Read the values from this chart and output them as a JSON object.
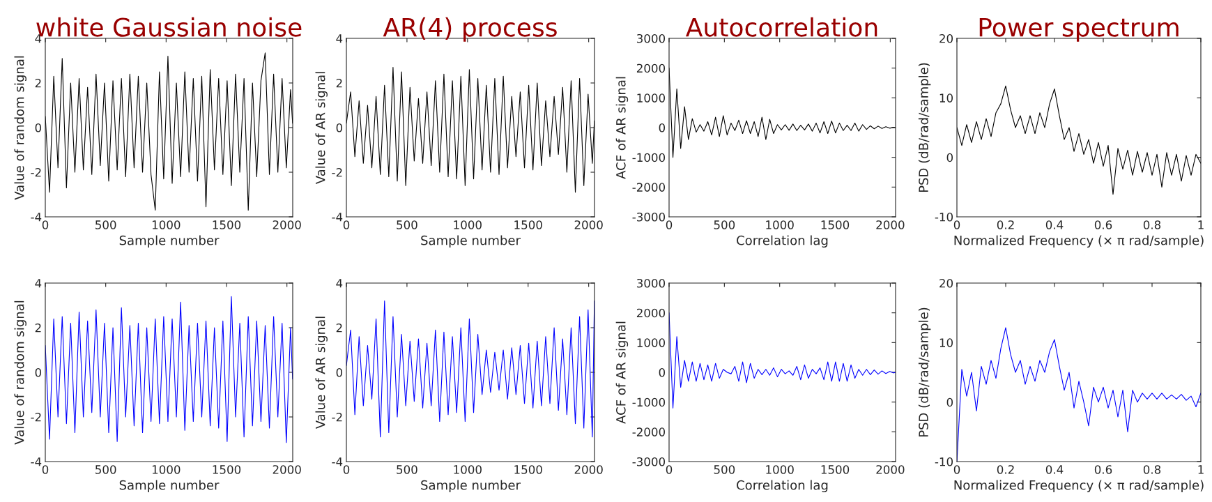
{
  "chart_data": [
    {
      "type": "line",
      "title": "white Gaussian noise",
      "xlabel": "Sample number",
      "ylabel": "Value of random signal",
      "xlim": [
        0,
        2048
      ],
      "xticks": [
        0,
        500,
        1000,
        1500,
        2000
      ],
      "ylim": [
        -4,
        4
      ],
      "yticks": [
        -4,
        -2,
        0,
        2,
        4
      ],
      "grid": false,
      "x": [
        0,
        35,
        70,
        105,
        140,
        175,
        210,
        245,
        280,
        315,
        350,
        385,
        420,
        455,
        490,
        525,
        560,
        595,
        630,
        665,
        700,
        735,
        770,
        805,
        840,
        875,
        910,
        945,
        980,
        1015,
        1050,
        1085,
        1120,
        1155,
        1190,
        1225,
        1260,
        1295,
        1330,
        1365,
        1400,
        1435,
        1470,
        1505,
        1540,
        1575,
        1610,
        1645,
        1680,
        1715,
        1750,
        1785,
        1820,
        1855,
        1890,
        1925,
        1960,
        1995,
        2030,
        2047
      ],
      "series": [
        {
          "color": "#000000",
          "values": [
            0.5,
            -2.9,
            2.3,
            -1.8,
            3.1,
            -2.7,
            2.0,
            -2.0,
            2.2,
            -1.9,
            1.8,
            -2.1,
            2.4,
            -1.7,
            2.0,
            -2.4,
            2.1,
            -1.9,
            2.2,
            -2.2,
            2.4,
            -1.8,
            2.3,
            -2.0,
            2.0,
            -2.1,
            -3.7,
            2.5,
            -2.3,
            3.2,
            -2.5,
            2.0,
            -2.2,
            2.5,
            -2.0,
            2.2,
            -2.4,
            2.3,
            -3.55,
            2.6,
            -1.9,
            2.2,
            -2.1,
            2.1,
            -2.6,
            2.4,
            -2.0,
            2.2,
            -3.7,
            2.0,
            -2.2,
            2.1,
            3.35,
            -2.1,
            2.4,
            -2.0,
            2.2,
            -1.8,
            1.7,
            0.2
          ]
        }
      ]
    },
    {
      "type": "line",
      "title": "AR(4) process",
      "xlabel": "Sample number",
      "ylabel": "Value of AR signal",
      "xlim": [
        0,
        2048
      ],
      "xticks": [
        0,
        500,
        1000,
        1500,
        2000
      ],
      "ylim": [
        -4,
        4
      ],
      "yticks": [
        -4,
        -2,
        0,
        2,
        4
      ],
      "grid": false,
      "x": [
        0,
        35,
        70,
        105,
        140,
        175,
        210,
        245,
        280,
        315,
        350,
        385,
        420,
        455,
        490,
        525,
        560,
        595,
        630,
        665,
        700,
        735,
        770,
        805,
        840,
        875,
        910,
        945,
        980,
        1015,
        1050,
        1085,
        1120,
        1155,
        1190,
        1225,
        1260,
        1295,
        1330,
        1365,
        1400,
        1435,
        1470,
        1505,
        1540,
        1575,
        1610,
        1645,
        1680,
        1715,
        1750,
        1785,
        1820,
        1855,
        1890,
        1925,
        1960,
        1995,
        2030,
        2047
      ],
      "series": [
        {
          "color": "#000000",
          "values": [
            0.2,
            1.6,
            -1.3,
            1.2,
            -1.6,
            1.0,
            -1.8,
            1.4,
            -2.1,
            1.9,
            -2.2,
            2.7,
            -2.4,
            2.5,
            -2.6,
            1.8,
            -1.5,
            1.3,
            -1.6,
            1.6,
            -1.7,
            2.1,
            -2.0,
            2.4,
            -2.2,
            2.1,
            -2.3,
            2.3,
            -2.6,
            2.6,
            -2.3,
            2.2,
            -1.9,
            1.9,
            -2.0,
            2.2,
            -2.1,
            2.3,
            -1.8,
            1.4,
            -1.3,
            1.6,
            -1.8,
            1.9,
            -1.9,
            2.0,
            -1.7,
            1.2,
            -1.3,
            1.4,
            -1.2,
            1.8,
            -2.0,
            2.1,
            -2.9,
            2.2,
            -2.6,
            1.5,
            -1.6,
            0.3
          ]
        }
      ]
    },
    {
      "type": "line",
      "title": "Autocorrelation",
      "xlabel": "Correlation lag",
      "ylabel": "ACF of AR signal",
      "xlim": [
        0,
        2048
      ],
      "xticks": [
        0,
        500,
        1000,
        1500,
        2000
      ],
      "ylim": [
        -3000,
        3000
      ],
      "yticks": [
        -3000,
        -2000,
        -1000,
        0,
        1000,
        2000,
        3000
      ],
      "grid": false,
      "x": [
        0,
        35,
        70,
        105,
        140,
        175,
        210,
        245,
        280,
        315,
        350,
        385,
        420,
        455,
        490,
        525,
        560,
        595,
        630,
        665,
        700,
        735,
        770,
        805,
        840,
        875,
        910,
        945,
        980,
        1015,
        1050,
        1085,
        1120,
        1155,
        1190,
        1225,
        1260,
        1295,
        1330,
        1365,
        1400,
        1435,
        1470,
        1505,
        1540,
        1575,
        1610,
        1645,
        1680,
        1715,
        1750,
        1785,
        1820,
        1855,
        1890,
        1925,
        1960,
        1995,
        2030,
        2047
      ],
      "series": [
        {
          "color": "#000000",
          "values": [
            2000,
            -1000,
            1300,
            -700,
            700,
            -400,
            300,
            -150,
            100,
            -120,
            200,
            -250,
            350,
            -300,
            400,
            -250,
            150,
            -100,
            250,
            -200,
            230,
            -200,
            200,
            -300,
            350,
            -400,
            280,
            -200,
            100,
            -80,
            100,
            -90,
            120,
            -100,
            80,
            -80,
            120,
            -120,
            150,
            -180,
            200,
            -200,
            220,
            -180,
            150,
            -100,
            80,
            -100,
            150,
            -120,
            100,
            -60,
            60,
            -40,
            50,
            -30,
            30,
            -20,
            10,
            0
          ]
        }
      ]
    },
    {
      "type": "line",
      "title": "Power spectrum",
      "xlabel": "Normalized Frequency (× π rad/sample)",
      "ylabel": "PSD (dB/rad/sample)",
      "xlim": [
        0,
        1
      ],
      "xticks": [
        0,
        0.2,
        0.4,
        0.6,
        0.8,
        1
      ],
      "ylim": [
        -10,
        20
      ],
      "yticks": [
        -10,
        0,
        10,
        20
      ],
      "grid": false,
      "x": [
        0,
        0.02,
        0.04,
        0.06,
        0.08,
        0.1,
        0.12,
        0.14,
        0.16,
        0.18,
        0.2,
        0.22,
        0.24,
        0.26,
        0.28,
        0.3,
        0.32,
        0.34,
        0.36,
        0.38,
        0.4,
        0.42,
        0.44,
        0.46,
        0.48,
        0.5,
        0.52,
        0.54,
        0.56,
        0.58,
        0.6,
        0.62,
        0.64,
        0.66,
        0.68,
        0.7,
        0.72,
        0.74,
        0.76,
        0.78,
        0.8,
        0.82,
        0.84,
        0.86,
        0.88,
        0.9,
        0.92,
        0.94,
        0.96,
        0.98,
        1.0
      ],
      "series": [
        {
          "color": "#000000",
          "values": [
            5,
            2,
            5.5,
            2.5,
            6,
            3,
            6.5,
            3.5,
            7.5,
            9,
            12,
            8,
            5,
            7,
            4,
            7,
            4,
            7.5,
            5,
            9,
            11.5,
            7,
            3,
            5,
            1,
            4,
            0.5,
            3,
            -1,
            2.5,
            -1.5,
            2,
            -6.2,
            1.5,
            -2,
            1.2,
            -3,
            1,
            -2.5,
            0.8,
            -3,
            0.5,
            -5,
            0.8,
            -3,
            0.5,
            -4,
            0.3,
            -3,
            0.5,
            -1
          ]
        }
      ]
    },
    {
      "type": "line",
      "xlabel": "Sample number",
      "ylabel": "Value of random signal",
      "xlim": [
        0,
        2048
      ],
      "xticks": [
        0,
        500,
        1000,
        1500,
        2000
      ],
      "ylim": [
        -4,
        4
      ],
      "yticks": [
        -4,
        -2,
        0,
        2,
        4
      ],
      "grid": false,
      "x": [
        0,
        35,
        70,
        105,
        140,
        175,
        210,
        245,
        280,
        315,
        350,
        385,
        420,
        455,
        490,
        525,
        560,
        595,
        630,
        665,
        700,
        735,
        770,
        805,
        840,
        875,
        910,
        945,
        980,
        1015,
        1050,
        1085,
        1120,
        1155,
        1190,
        1225,
        1260,
        1295,
        1330,
        1365,
        1400,
        1435,
        1470,
        1505,
        1540,
        1575,
        1610,
        1645,
        1680,
        1715,
        1750,
        1785,
        1820,
        1855,
        1890,
        1925,
        1960,
        1995,
        2030,
        2047
      ],
      "series": [
        {
          "color": "#0000ff",
          "values": [
            1.2,
            -3.0,
            2.4,
            -2.0,
            2.5,
            -2.3,
            2.2,
            -2.7,
            2.7,
            -2.0,
            2.3,
            -1.8,
            2.8,
            -2.0,
            2.2,
            -2.7,
            2.0,
            -3.1,
            2.9,
            -2.0,
            2.1,
            -2.4,
            2.2,
            -2.7,
            2.0,
            -2.2,
            2.4,
            -2.3,
            2.5,
            -2.2,
            2.4,
            -2.0,
            3.15,
            -2.6,
            2.1,
            -2.2,
            2.2,
            -2.0,
            2.3,
            -2.4,
            2.0,
            -2.5,
            2.3,
            -3.1,
            3.4,
            -2.0,
            2.2,
            -2.9,
            2.5,
            -2.4,
            2.3,
            -2.2,
            2.1,
            -2.5,
            2.5,
            -2.0,
            2.2,
            -3.15,
            2.0,
            -0.3
          ]
        }
      ]
    },
    {
      "type": "line",
      "xlabel": "Sample number",
      "ylabel": "Value of AR signal",
      "xlim": [
        0,
        2048
      ],
      "xticks": [
        0,
        500,
        1000,
        1500,
        2000
      ],
      "ylim": [
        -4,
        4
      ],
      "yticks": [
        -4,
        -2,
        0,
        2,
        4
      ],
      "grid": false,
      "x": [
        0,
        35,
        70,
        105,
        140,
        175,
        210,
        245,
        280,
        315,
        350,
        385,
        420,
        455,
        490,
        525,
        560,
        595,
        630,
        665,
        700,
        735,
        770,
        805,
        840,
        875,
        910,
        945,
        980,
        1015,
        1050,
        1085,
        1120,
        1155,
        1190,
        1225,
        1260,
        1295,
        1330,
        1365,
        1400,
        1435,
        1470,
        1505,
        1540,
        1575,
        1610,
        1645,
        1680,
        1715,
        1750,
        1785,
        1820,
        1855,
        1890,
        1925,
        1960,
        1995,
        2030,
        2047
      ],
      "series": [
        {
          "color": "#0000ff",
          "values": [
            0.3,
            1.9,
            -1.9,
            1.6,
            -1.5,
            1.2,
            -1.2,
            2.4,
            -2.9,
            3.2,
            -2.7,
            2.5,
            -2.0,
            1.7,
            -1.5,
            1.4,
            -1.3,
            1.5,
            -1.6,
            1.3,
            -1.5,
            1.9,
            -2.2,
            1.8,
            -1.9,
            1.6,
            -1.8,
            2.0,
            -2.2,
            2.4,
            -1.8,
            1.7,
            -1.0,
            1.0,
            -0.9,
            0.9,
            -0.8,
            1.0,
            -1.2,
            1.1,
            -1.0,
            1.2,
            -1.4,
            1.3,
            -1.6,
            1.4,
            -1.5,
            1.6,
            -1.4,
            2.0,
            -1.7,
            1.5,
            -1.9,
            2.0,
            -2.3,
            2.5,
            -2.5,
            2.8,
            -2.9,
            3.2
          ]
        }
      ]
    },
    {
      "type": "line",
      "xlabel": "Correlation lag",
      "ylabel": "ACF of AR signal",
      "xlim": [
        0,
        2048
      ],
      "xticks": [
        0,
        500,
        1000,
        1500,
        2000
      ],
      "ylim": [
        -3000,
        3000
      ],
      "yticks": [
        -3000,
        -2000,
        -1000,
        0,
        1000,
        2000,
        3000
      ],
      "grid": false,
      "x": [
        0,
        35,
        70,
        105,
        140,
        175,
        210,
        245,
        280,
        315,
        350,
        385,
        420,
        455,
        490,
        525,
        560,
        595,
        630,
        665,
        700,
        735,
        770,
        805,
        840,
        875,
        910,
        945,
        980,
        1015,
        1050,
        1085,
        1120,
        1155,
        1190,
        1225,
        1260,
        1295,
        1330,
        1365,
        1400,
        1435,
        1470,
        1505,
        1540,
        1575,
        1610,
        1645,
        1680,
        1715,
        1750,
        1785,
        1820,
        1855,
        1890,
        1925,
        1960,
        1995,
        2030,
        2047
      ],
      "series": [
        {
          "color": "#0000ff",
          "values": [
            2000,
            -1200,
            1200,
            -500,
            400,
            -300,
            350,
            -300,
            300,
            -250,
            250,
            -300,
            300,
            -200,
            100,
            0,
            -50,
            200,
            -300,
            350,
            -350,
            300,
            -200,
            100,
            -80,
            100,
            -100,
            150,
            -150,
            100,
            -50,
            50,
            -100,
            200,
            -250,
            250,
            -200,
            100,
            -50,
            150,
            -250,
            350,
            -300,
            350,
            -300,
            300,
            -300,
            250,
            -200,
            100,
            -100,
            100,
            -80,
            80,
            -60,
            50,
            -40,
            30,
            -20,
            0
          ]
        }
      ]
    },
    {
      "type": "line",
      "xlabel": "Normalized Frequency (× π rad/sample)",
      "ylabel": "PSD (dB/rad/sample)",
      "xlim": [
        0,
        1
      ],
      "xticks": [
        0,
        0.2,
        0.4,
        0.6,
        0.8,
        1
      ],
      "ylim": [
        -10,
        20
      ],
      "yticks": [
        -10,
        0,
        10,
        20
      ],
      "grid": false,
      "x": [
        0,
        0.02,
        0.04,
        0.06,
        0.08,
        0.1,
        0.12,
        0.14,
        0.16,
        0.18,
        0.2,
        0.22,
        0.24,
        0.26,
        0.28,
        0.3,
        0.32,
        0.34,
        0.36,
        0.38,
        0.4,
        0.42,
        0.44,
        0.46,
        0.48,
        0.5,
        0.52,
        0.54,
        0.56,
        0.58,
        0.6,
        0.62,
        0.64,
        0.66,
        0.68,
        0.7,
        0.72,
        0.74,
        0.76,
        0.78,
        0.8,
        0.82,
        0.84,
        0.86,
        0.88,
        0.9,
        0.92,
        0.94,
        0.96,
        0.98,
        1.0
      ],
      "series": [
        {
          "color": "#0000ff",
          "values": [
            -10,
            5.5,
            1,
            5,
            -1.5,
            6,
            3,
            7,
            4,
            9,
            12.5,
            8,
            5,
            7,
            3,
            6,
            3.5,
            7,
            5,
            8.5,
            10.5,
            6,
            2,
            5,
            -1,
            3.5,
            0,
            -4,
            2.5,
            0,
            2.5,
            -1,
            2,
            -2.5,
            2,
            -5,
            2,
            0,
            1.5,
            0.5,
            1.5,
            0.5,
            1.5,
            0.5,
            1.2,
            0.5,
            1.3,
            0.3,
            1,
            -0.8,
            1.5
          ]
        }
      ]
    }
  ]
}
